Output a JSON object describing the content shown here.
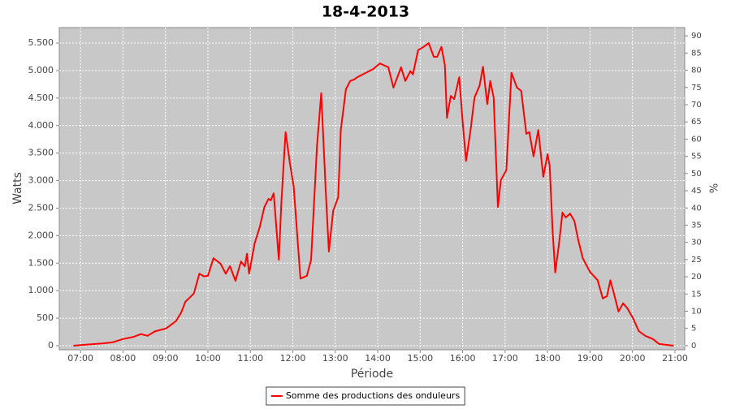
{
  "chart_data": {
    "type": "line",
    "title": "18-4-2013",
    "x_label": "Période",
    "y_label": "Watts",
    "y2_label": "%",
    "x": [
      6.83,
      7,
      7.25,
      7.5,
      7.75,
      8,
      8.25,
      8.42,
      8.58,
      8.75,
      9,
      9.08,
      9.25,
      9.37,
      9.47,
      9.58,
      9.67,
      9.8,
      9.9,
      10,
      10.13,
      10.3,
      10.42,
      10.52,
      10.65,
      10.78,
      10.87,
      10.92,
      10.97,
      11.1,
      11.22,
      11.33,
      11.43,
      11.48,
      11.55,
      11.67,
      11.73,
      11.83,
      11.93,
      12.02,
      12.18,
      12.33,
      12.43,
      12.57,
      12.67,
      12.77,
      12.85,
      12.95,
      13.07,
      13.13,
      13.25,
      13.35,
      13.45,
      13.52,
      13.9,
      14.05,
      14.25,
      14.37,
      14.43,
      14.55,
      14.65,
      14.77,
      14.83,
      14.95,
      15.08,
      15.2,
      15.32,
      15.4,
      15.5,
      15.58,
      15.63,
      15.72,
      15.8,
      15.92,
      16,
      16.08,
      16.18,
      16.28,
      16.4,
      16.48,
      16.58,
      16.65,
      16.73,
      16.83,
      16.9,
      17.03,
      17.15,
      17.28,
      17.38,
      17.5,
      17.57,
      17.67,
      17.78,
      17.9,
      18,
      18.05,
      18.12,
      18.18,
      18.27,
      18.35,
      18.43,
      18.53,
      18.63,
      18.72,
      18.83,
      19,
      19.18,
      19.3,
      19.4,
      19.48,
      19.58,
      19.67,
      19.78,
      19.88,
      20.02,
      20.15,
      20.3,
      20.48,
      20.63,
      20.97
    ],
    "series": [
      {
        "name": "Somme des productions des onduleurs",
        "color": "#ff0000",
        "values": [
          0,
          10,
          25,
          40,
          60,
          120,
          160,
          210,
          180,
          260,
          310,
          350,
          450,
          600,
          800,
          880,
          950,
          1310,
          1260,
          1270,
          1590,
          1490,
          1310,
          1445,
          1180,
          1530,
          1440,
          1670,
          1310,
          1860,
          2150,
          2520,
          2670,
          2640,
          2770,
          1560,
          2600,
          3880,
          3330,
          2890,
          1220,
          1270,
          1560,
          3630,
          4590,
          2890,
          1710,
          2450,
          2700,
          3920,
          4660,
          4810,
          4840,
          4880,
          5030,
          5130,
          5060,
          4690,
          4810,
          5060,
          4810,
          4990,
          4930,
          5370,
          5430,
          5500,
          5250,
          5250,
          5430,
          5100,
          4140,
          4540,
          4480,
          4880,
          4070,
          3360,
          3880,
          4510,
          4730,
          5070,
          4390,
          4810,
          4510,
          2520,
          3010,
          3190,
          4960,
          4690,
          4630,
          3850,
          3880,
          3440,
          3920,
          3070,
          3480,
          3260,
          2080,
          1330,
          1860,
          2420,
          2330,
          2400,
          2270,
          1930,
          1590,
          1340,
          1190,
          860,
          900,
          1190,
          900,
          620,
          770,
          680,
          490,
          265,
          180,
          120,
          30,
          0
        ]
      }
    ],
    "xlim": [
      6.5,
      21.23
    ],
    "xticks": [
      {
        "value": 7,
        "label": "07:00"
      },
      {
        "value": 8,
        "label": "08:00"
      },
      {
        "value": 9,
        "label": "09:00"
      },
      {
        "value": 10,
        "label": "10:00"
      },
      {
        "value": 11,
        "label": "11:00"
      },
      {
        "value": 12,
        "label": "12:00"
      },
      {
        "value": 13,
        "label": "13:00"
      },
      {
        "value": 14,
        "label": "14:00"
      },
      {
        "value": 15,
        "label": "15:00"
      },
      {
        "value": 16,
        "label": "16:00"
      },
      {
        "value": 17,
        "label": "17:00"
      },
      {
        "value": 18,
        "label": "18:00"
      },
      {
        "value": 19,
        "label": "19:00"
      },
      {
        "value": 20,
        "label": "20:00"
      },
      {
        "value": 21,
        "label": "21:00"
      }
    ],
    "ylim": [
      -74,
      5781
    ],
    "yticks": [
      0,
      500,
      {
        "value": 1000,
        "label": "1.000"
      },
      {
        "value": 1500,
        "label": "1.500"
      },
      {
        "value": 2000,
        "label": "2.000"
      },
      {
        "value": 2500,
        "label": "2.500"
      },
      {
        "value": 3000,
        "label": "3.000"
      },
      {
        "value": 3500,
        "label": "3.500"
      },
      {
        "value": 4000,
        "label": "4.000"
      },
      {
        "value": 4500,
        "label": "4.500"
      },
      {
        "value": 5000,
        "label": "5.000"
      },
      {
        "value": 5500,
        "label": "5.500"
      }
    ],
    "y2lim": [
      -1.2,
      92.4
    ],
    "y2ticks": [
      0,
      5,
      10,
      15,
      20,
      25,
      30,
      35,
      40,
      45,
      50,
      55,
      60,
      65,
      70,
      75,
      80,
      85,
      90
    ],
    "grid": true,
    "legend": "bottom"
  }
}
